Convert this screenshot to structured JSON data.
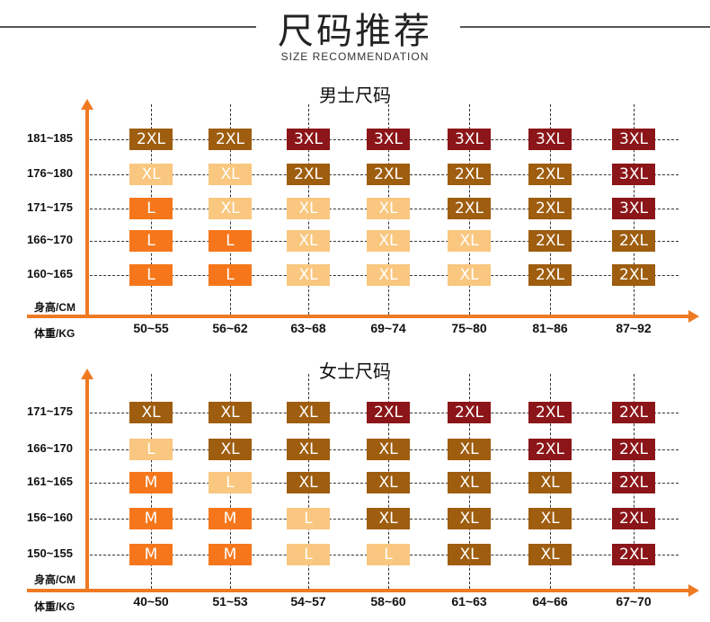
{
  "header": {
    "title": "尺码推荐",
    "subtitle": "SIZE RECOMMENDATION"
  },
  "colors": {
    "axis": "#f07a22",
    "size_L_or_M": "#f6771b",
    "size_light": "#f9c77f",
    "size_brown": "#9e5d0f",
    "size_darkred": "#8b1518"
  },
  "men": {
    "title": "男士尺码",
    "y_axis_label": "身高/CM",
    "x_axis_label": "体重/KG",
    "heights": [
      "181~185",
      "176~180",
      "171~175",
      "166~170",
      "160~165"
    ],
    "weights": [
      "50~55",
      "56~62",
      "63~68",
      "69~74",
      "75~80",
      "81~86",
      "87~92"
    ],
    "grid": [
      [
        "2XL",
        "2XL",
        "3XL",
        "3XL",
        "3XL",
        "3XL",
        "3XL"
      ],
      [
        "XL",
        "XL",
        "2XL",
        "2XL",
        "2XL",
        "2XL",
        "3XL"
      ],
      [
        "L",
        "XL",
        "XL",
        "XL",
        "2XL",
        "2XL",
        "3XL"
      ],
      [
        "L",
        "L",
        "XL",
        "XL",
        "XL",
        "2XL",
        "2XL"
      ],
      [
        "L",
        "L",
        "XL",
        "XL",
        "XL",
        "2XL",
        "2XL"
      ]
    ]
  },
  "women": {
    "title": "女士尺码",
    "y_axis_label": "身高/CM",
    "x_axis_label": "体重/KG",
    "heights": [
      "171~175",
      "166~170",
      "161~165",
      "156~160",
      "150~155"
    ],
    "weights": [
      "40~50",
      "51~53",
      "54~57",
      "58~60",
      "61~63",
      "64~66",
      "67~70"
    ],
    "grid": [
      [
        "XL",
        "XL",
        "XL",
        "2XL",
        "2XL",
        "2XL",
        "2XL"
      ],
      [
        "L",
        "XL",
        "XL",
        "XL",
        "XL",
        "2XL",
        "2XL"
      ],
      [
        "M",
        "L",
        "XL",
        "XL",
        "XL",
        "XL",
        "2XL"
      ],
      [
        "M",
        "M",
        "L",
        "XL",
        "XL",
        "XL",
        "2XL"
      ],
      [
        "M",
        "M",
        "L",
        "L",
        "XL",
        "XL",
        "2XL"
      ]
    ]
  }
}
